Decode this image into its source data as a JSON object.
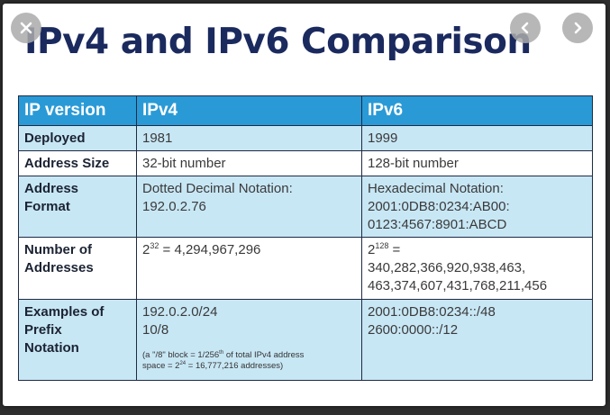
{
  "title": "IPv4 and IPv6 Comparison",
  "nav": {
    "close_icon": "close-icon",
    "prev_icon": "chevron-left-icon",
    "next_icon": "chevron-right-icon"
  },
  "table": {
    "headers": [
      "IP version",
      "IPv4",
      "IPv6"
    ],
    "rows": [
      {
        "label": "Deployed",
        "ipv4": "1981",
        "ipv6": "1999"
      },
      {
        "label": "Address Size",
        "ipv4": "32-bit number",
        "ipv6": "128-bit number"
      },
      {
        "label_line1": "Address",
        "label_line2": "Format",
        "ipv4_line1": "Dotted Decimal Notation:",
        "ipv4_line2": "192.0.2.76",
        "ipv6_line1": "Hexadecimal Notation:",
        "ipv6_line2": "2001:0DB8:0234:AB00:",
        "ipv6_line3": "0123:4567:8901:ABCD"
      },
      {
        "label_line1": "Number of",
        "label_line2": "Addresses",
        "ipv4_base": "2",
        "ipv4_exp": "32",
        "ipv4_value": " = 4,294,967,296",
        "ipv6_base": "2",
        "ipv6_exp": "128",
        "ipv6_eq": " =",
        "ipv6_line2": "340,282,366,920,938,463,",
        "ipv6_line3": "463,374,607,431,768,211,456"
      },
      {
        "label_line1": "Examples of",
        "label_line2": "Prefix",
        "label_line3": "Notation",
        "ipv4_line1": "192.0.2.0/24",
        "ipv4_line2": "10/8",
        "ipv4_note_a": "(a \"/8\" block = 1/256",
        "ipv4_note_th": "th",
        "ipv4_note_b": " of total IPv4 address",
        "ipv4_note_c": "space = 2",
        "ipv4_note_exp": "24",
        "ipv4_note_d": " = 16,777,216 addresses)",
        "ipv6_line1": "2001:0DB8:0234::/48",
        "ipv6_line2": "2600:0000::/12"
      }
    ]
  },
  "colors": {
    "title": "#1b2a5e",
    "header_bg": "#2a9ad6",
    "row_blue": "#c8e7f5",
    "row_white": "#ffffff"
  }
}
